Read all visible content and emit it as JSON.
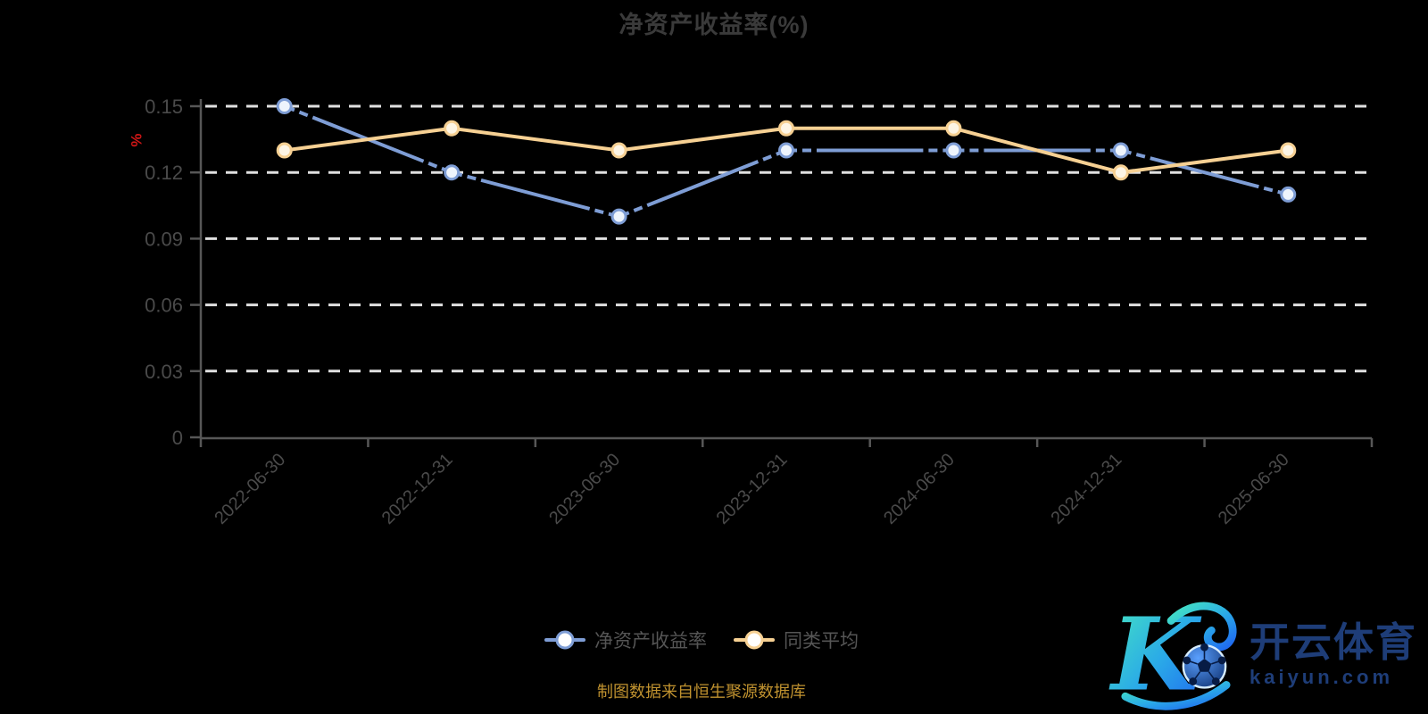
{
  "chart": {
    "title": "净资产收益率(%)",
    "y_unit": "%"
  },
  "chart_data": {
    "type": "line",
    "title": "净资产收益率(%)",
    "categories": [
      "2022-06-30",
      "2022-12-31",
      "2023-06-30",
      "2023-12-31",
      "2024-06-30",
      "2024-12-31",
      "2025-06-30"
    ],
    "series": [
      {
        "name": "净资产收益率",
        "values": [
          0.15,
          0.12,
          0.1,
          0.13,
          0.13,
          0.13,
          0.11
        ],
        "color": "#7e9dd5",
        "marker_fill": "#eef4fc",
        "line_type": "long-dash"
      },
      {
        "name": "同类平均",
        "values": [
          0.13,
          0.14,
          0.13,
          0.14,
          0.14,
          0.12,
          0.13
        ],
        "color": "#f6d093",
        "marker_fill": "#fdf5e5",
        "line_type": "solid"
      }
    ],
    "ylabel": "%",
    "ylim": [
      0,
      0.15
    ],
    "yticks": [
      0,
      0.03,
      0.06,
      0.09,
      0.12,
      0.15
    ],
    "grid": true,
    "grid_style": "dashed",
    "legend_position": "bottom"
  },
  "legend": {
    "items": [
      "净资产收益率",
      "同类平均"
    ]
  },
  "footer": {
    "note": "制图数据来自恒生聚源数据库"
  },
  "watermark": {
    "monogram": "K",
    "brand_cn": "开云体育",
    "brand_domain": "kaiyun.com",
    "icon": "soccer-ball-icon"
  },
  "colors": {
    "background": "#000000",
    "title": "#3a3a3a",
    "axis_line": "#575757",
    "tick_label": "#4a4a4a",
    "grid_line": "#e0e0e0",
    "unit_label": "#d01616",
    "footer_note": "#c0922f",
    "logo_text": "#1e3d78",
    "logo_gradient_start": "#46e8c0",
    "logo_gradient_end": "#1f66f0",
    "series_blue": "#7e9dd5",
    "series_yellow": "#f6d093"
  }
}
